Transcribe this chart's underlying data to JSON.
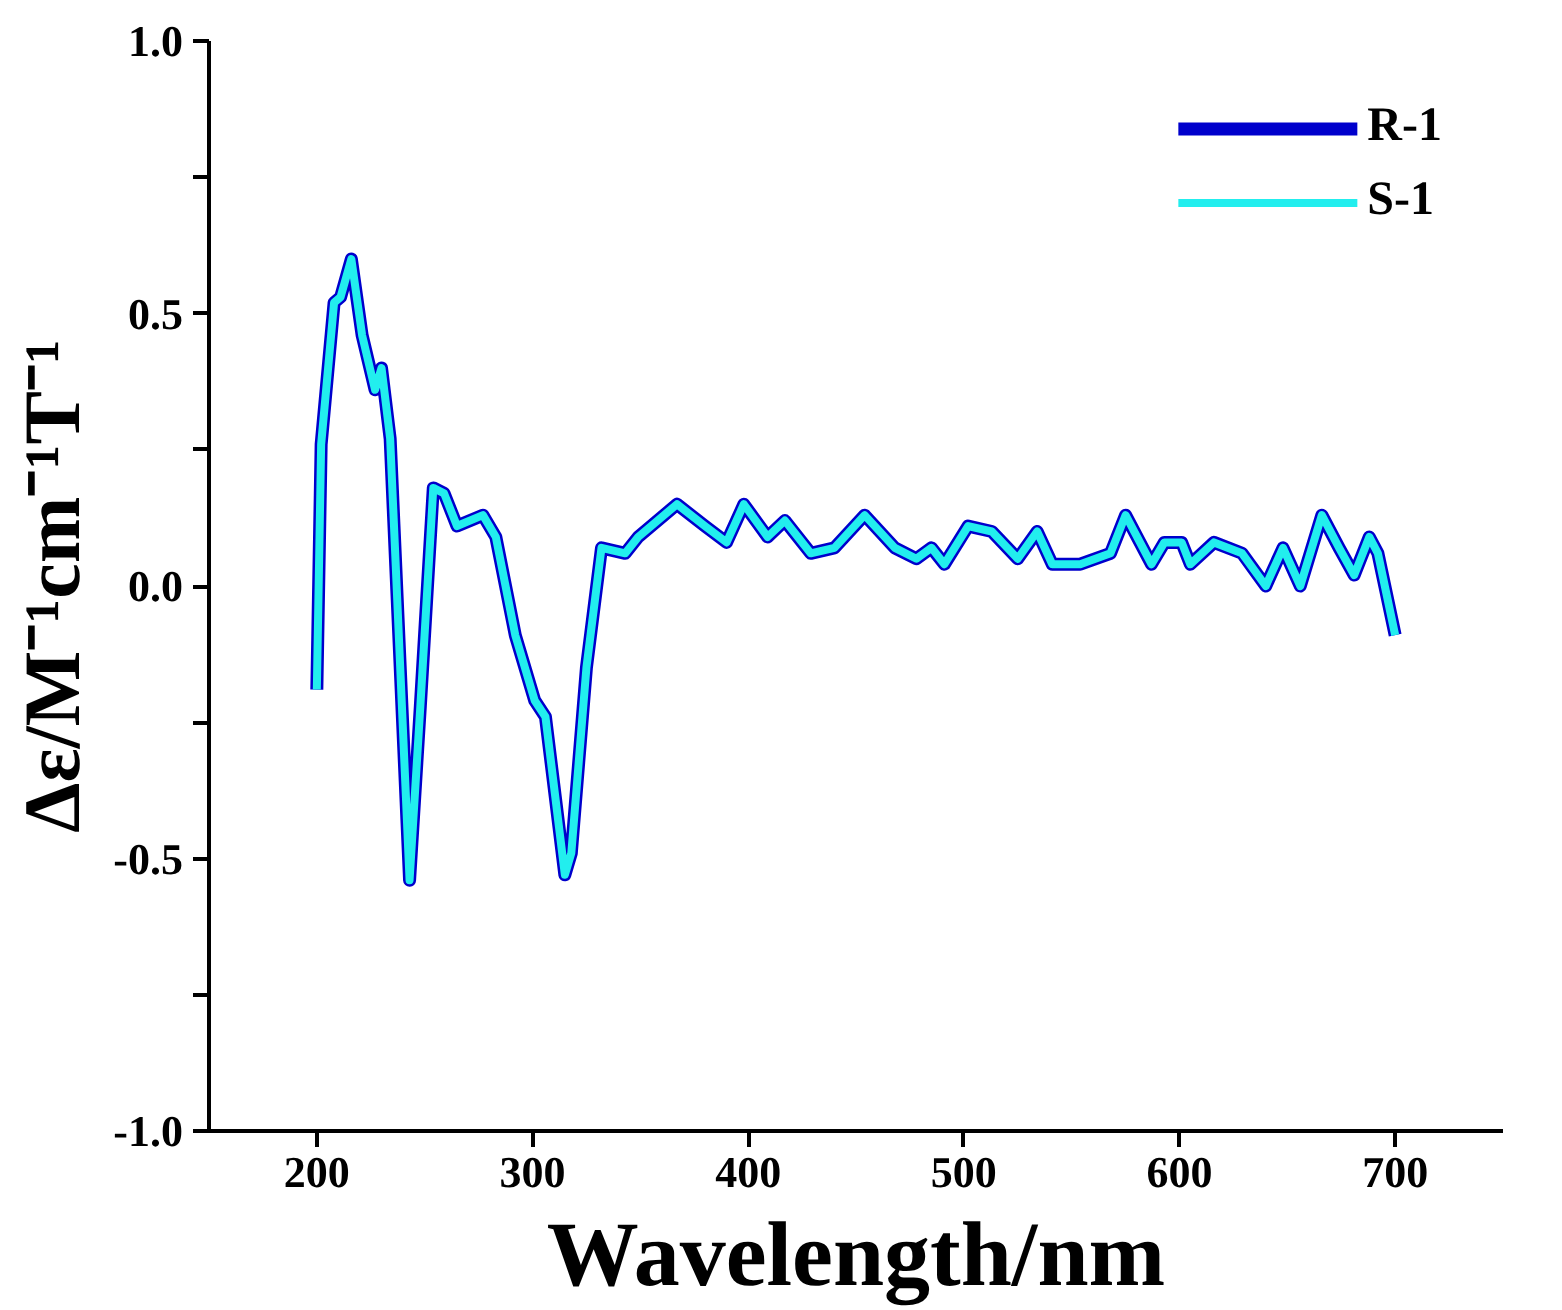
{
  "chart_data": {
    "type": "line",
    "xlabel": "Wavelength/nm",
    "ylabel": "Δε/M⁻¹cm⁻¹T⁻¹",
    "x": [
      200,
      202,
      208,
      211,
      216,
      221,
      227,
      230,
      234,
      243,
      248,
      254,
      259,
      265,
      277,
      283,
      292,
      301,
      306,
      315,
      318,
      325,
      332,
      343,
      349,
      367,
      380,
      390,
      398,
      409,
      417,
      429,
      440,
      454,
      468,
      478,
      485,
      491,
      502,
      513,
      525,
      534,
      541,
      554,
      568,
      575,
      587,
      593,
      601,
      605,
      616,
      629,
      640,
      648,
      656,
      666,
      674,
      681,
      688,
      692,
      700
    ],
    "series": [
      {
        "name": "R-1",
        "color": "#0000cc",
        "values": [
          -0.19,
          0.26,
          0.52,
          0.53,
          0.6,
          0.46,
          0.36,
          0.4,
          0.27,
          -0.54,
          -0.22,
          0.18,
          0.17,
          0.11,
          0.13,
          0.09,
          -0.09,
          -0.21,
          -0.24,
          -0.53,
          -0.49,
          -0.15,
          0.07,
          0.06,
          0.09,
          0.15,
          0.11,
          0.08,
          0.15,
          0.09,
          0.12,
          0.06,
          0.07,
          0.13,
          0.07,
          0.05,
          0.07,
          0.04,
          0.11,
          0.1,
          0.05,
          0.1,
          0.04,
          0.04,
          0.06,
          0.13,
          0.04,
          0.08,
          0.08,
          0.04,
          0.08,
          0.06,
          0.0,
          0.07,
          0.0,
          0.13,
          0.07,
          0.02,
          0.09,
          0.06,
          -0.09
        ]
      },
      {
        "name": "S-1",
        "color": "#22eeee",
        "values": [
          -0.19,
          0.26,
          0.52,
          0.53,
          0.6,
          0.46,
          0.36,
          0.4,
          0.27,
          -0.54,
          -0.22,
          0.18,
          0.17,
          0.11,
          0.13,
          0.09,
          -0.09,
          -0.21,
          -0.24,
          -0.53,
          -0.49,
          -0.15,
          0.07,
          0.06,
          0.09,
          0.15,
          0.11,
          0.08,
          0.15,
          0.09,
          0.12,
          0.06,
          0.07,
          0.13,
          0.07,
          0.05,
          0.07,
          0.04,
          0.11,
          0.1,
          0.05,
          0.1,
          0.04,
          0.04,
          0.06,
          0.13,
          0.04,
          0.08,
          0.08,
          0.04,
          0.08,
          0.06,
          0.0,
          0.07,
          0.0,
          0.13,
          0.07,
          0.02,
          0.09,
          0.06,
          -0.09
        ]
      }
    ],
    "xlim": [
      150,
      750
    ],
    "xticks": [
      200,
      300,
      400,
      500,
      600,
      700
    ],
    "ylim": [
      -1,
      1
    ],
    "yticks": [
      {
        "value": -1,
        "label": "-1.0"
      },
      {
        "value": -0.75,
        "label": null
      },
      {
        "value": -0.5,
        "label": "-0.5"
      },
      {
        "value": -0.25,
        "label": null
      },
      {
        "value": 0,
        "label": "0.0"
      },
      {
        "value": 0.25,
        "label": null
      },
      {
        "value": 0.5,
        "label": "0.5"
      },
      {
        "value": 0.75,
        "label": null
      },
      {
        "value": 1,
        "label": "1.0"
      }
    ],
    "grid": false,
    "legend": "top right",
    "line_style": "solid"
  }
}
